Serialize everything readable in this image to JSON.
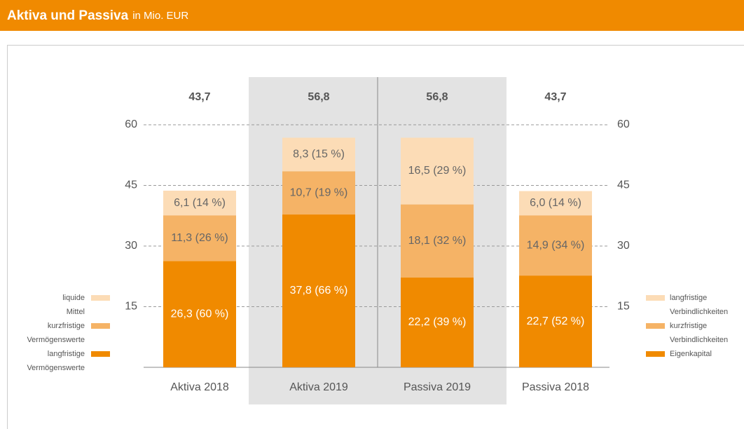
{
  "chart_data": {
    "type": "stacked_bar",
    "title": "Aktiva und Passiva",
    "subtitle": "in Mio. EUR",
    "categories": [
      "Aktiva 2018",
      "Aktiva 2019",
      "Passiva 2019",
      "Passiva 2018"
    ],
    "totals": [
      43.7,
      56.8,
      56.8,
      43.7
    ],
    "total_labels": [
      "43,7",
      "56,8",
      "56,8",
      "43,7"
    ],
    "series": [
      {
        "name": "langfristige Vermögenswerte",
        "color": "#f08a00",
        "label_color": "#ffffff",
        "legend": "left",
        "values": [
          26.3,
          37.8,
          null,
          null
        ],
        "value_labels": [
          "26,3 (60 %)",
          "37,8 (66 %)",
          null,
          null
        ]
      },
      {
        "name": "Eigenkapital",
        "color": "#f08a00",
        "label_color": "#ffffff",
        "legend": "right",
        "values": [
          null,
          null,
          22.2,
          22.7
        ],
        "value_labels": [
          null,
          null,
          "22,2 (39 %)",
          "22,7 (52 %)"
        ]
      },
      {
        "name": "kurzfristige Vermögenswerte",
        "color": "#f5b366",
        "label_color": "#666666",
        "legend": "left",
        "values": [
          11.3,
          10.7,
          null,
          null
        ],
        "value_labels": [
          "11,3 (26 %)",
          "10,7 (19 %)",
          null,
          null
        ]
      },
      {
        "name": "kurzfristige Verbindlichkeiten",
        "color": "#f5b366",
        "label_color": "#666666",
        "legend": "right",
        "values": [
          null,
          null,
          18.1,
          14.9
        ],
        "value_labels": [
          null,
          null,
          "18,1 (32 %)",
          "14,9 (34 %)"
        ]
      },
      {
        "name": "liquide Mittel",
        "color": "#fcdcb6",
        "label_color": "#666666",
        "legend": "left",
        "values": [
          6.1,
          8.3,
          null,
          null
        ],
        "value_labels": [
          "6,1 (14 %)",
          "8,3 (15 %)",
          null,
          null
        ]
      },
      {
        "name": "langfristige Verbindlichkeiten",
        "color": "#fcdcb6",
        "label_color": "#666666",
        "legend": "right",
        "values": [
          null,
          null,
          16.5,
          6.0
        ],
        "value_labels": [
          null,
          null,
          "16,5 (29 %)",
          "6,0 (14 %)"
        ]
      }
    ],
    "ylim": [
      0,
      60
    ],
    "yticks": [
      15,
      30,
      45,
      60
    ],
    "grid": true
  }
}
